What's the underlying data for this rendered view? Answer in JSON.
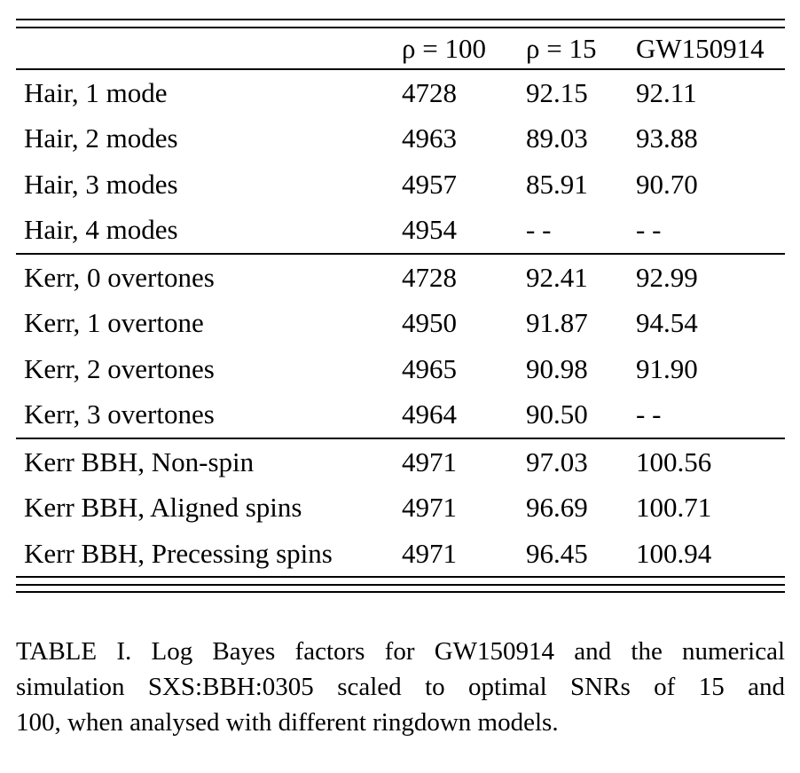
{
  "colors": {
    "text": "#000000",
    "rule": "#000000",
    "background": "#ffffff"
  },
  "table": {
    "header": {
      "col1": "",
      "col2": "ρ = 100",
      "col3": "ρ = 15",
      "col4": "GW150914"
    },
    "sections": [
      [
        {
          "label": "Hair, 1 mode",
          "v100": "4728",
          "v15": "92.15",
          "gw": "92.11"
        },
        {
          "label": "Hair, 2 modes",
          "v100": "4963",
          "v15": "89.03",
          "gw": "93.88"
        },
        {
          "label": "Hair, 3 modes",
          "v100": "4957",
          "v15": "85.91",
          "gw": "90.70"
        },
        {
          "label": "Hair, 4 modes",
          "v100": "4954",
          "v15": "- -",
          "gw": "- -"
        }
      ],
      [
        {
          "label": "Kerr, 0 overtones",
          "v100": "4728",
          "v15": "92.41",
          "gw": "92.99"
        },
        {
          "label": "Kerr, 1 overtone",
          "v100": "4950",
          "v15": "91.87",
          "gw": "94.54"
        },
        {
          "label": "Kerr, 2 overtones",
          "v100": "4965",
          "v15": "90.98",
          "gw": "91.90"
        },
        {
          "label": "Kerr, 3 overtones",
          "v100": "4964",
          "v15": "90.50",
          "gw": "- -"
        }
      ],
      [
        {
          "label": "Kerr BBH, Non-spin",
          "v100": "4971",
          "v15": "97.03",
          "gw": "100.56"
        },
        {
          "label": "Kerr BBH, Aligned spins",
          "v100": "4971",
          "v15": "96.69",
          "gw": "100.71"
        },
        {
          "label": "Kerr BBH, Precessing spins",
          "v100": "4971",
          "v15": "96.45",
          "gw": "100.94"
        }
      ]
    ]
  },
  "caption": {
    "lines": [
      "TABLE I. Log Bayes factors for GW150914 and the numerical",
      "simulation SXS:BBH:0305 scaled to optimal SNRs of 15 and",
      "100, when analysed with different ringdown models."
    ]
  }
}
